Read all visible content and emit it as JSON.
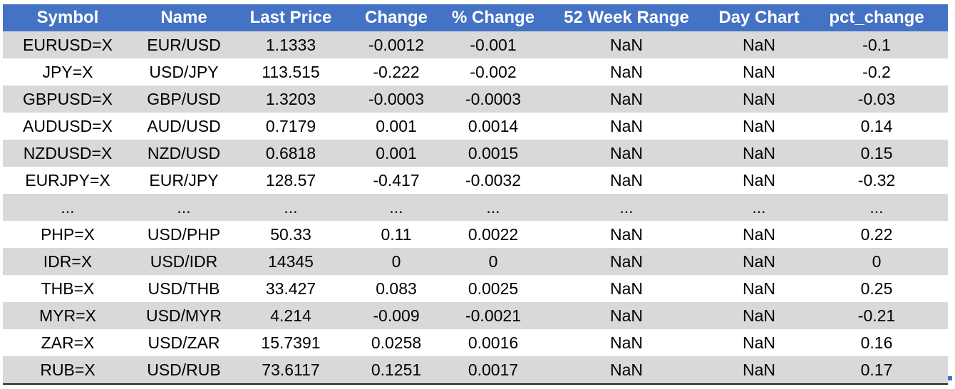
{
  "columns": [
    "Symbol",
    "Name",
    "Last Price",
    "Change",
    "% Change",
    "52 Week Range",
    "Day Chart",
    "pct_change"
  ],
  "rows": [
    [
      "EURUSD=X",
      "EUR/USD",
      "1.1333",
      "-0.0012",
      "-0.001",
      "NaN",
      "NaN",
      "-0.1"
    ],
    [
      "JPY=X",
      "USD/JPY",
      "113.515",
      "-0.222",
      "-0.002",
      "NaN",
      "NaN",
      "-0.2"
    ],
    [
      "GBPUSD=X",
      "GBP/USD",
      "1.3203",
      "-0.0003",
      "-0.0003",
      "NaN",
      "NaN",
      "-0.03"
    ],
    [
      "AUDUSD=X",
      "AUD/USD",
      "0.7179",
      "0.001",
      "0.0014",
      "NaN",
      "NaN",
      "0.14"
    ],
    [
      "NZDUSD=X",
      "NZD/USD",
      "0.6818",
      "0.001",
      "0.0015",
      "NaN",
      "NaN",
      "0.15"
    ],
    [
      "EURJPY=X",
      "EUR/JPY",
      "128.57",
      "-0.417",
      "-0.0032",
      "NaN",
      "NaN",
      "-0.32"
    ],
    [
      "...",
      "...",
      "...",
      "...",
      "...",
      "...",
      "...",
      "..."
    ],
    [
      "PHP=X",
      "USD/PHP",
      "50.33",
      "0.11",
      "0.0022",
      "NaN",
      "NaN",
      "0.22"
    ],
    [
      "IDR=X",
      "USD/IDR",
      "14345",
      "0",
      "0",
      "NaN",
      "NaN",
      "0"
    ],
    [
      "THB=X",
      "USD/THB",
      "33.427",
      "0.083",
      "0.0025",
      "NaN",
      "NaN",
      "0.25"
    ],
    [
      "MYR=X",
      "USD/MYR",
      "4.214",
      "-0.009",
      "-0.0021",
      "NaN",
      "NaN",
      "-0.21"
    ],
    [
      "ZAR=X",
      "USD/ZAR",
      "15.7391",
      "0.0258",
      "0.0016",
      "NaN",
      "NaN",
      "0.16"
    ],
    [
      "RUB=X",
      "USD/RUB",
      "73.6117",
      "0.1251",
      "0.0017",
      "NaN",
      "NaN",
      "0.17"
    ]
  ],
  "colors": {
    "header_bg": "#4472c4",
    "header_text": "#ffffff",
    "band_row_bg": "#d9d9d9",
    "plain_row_bg": "#ffffff"
  }
}
